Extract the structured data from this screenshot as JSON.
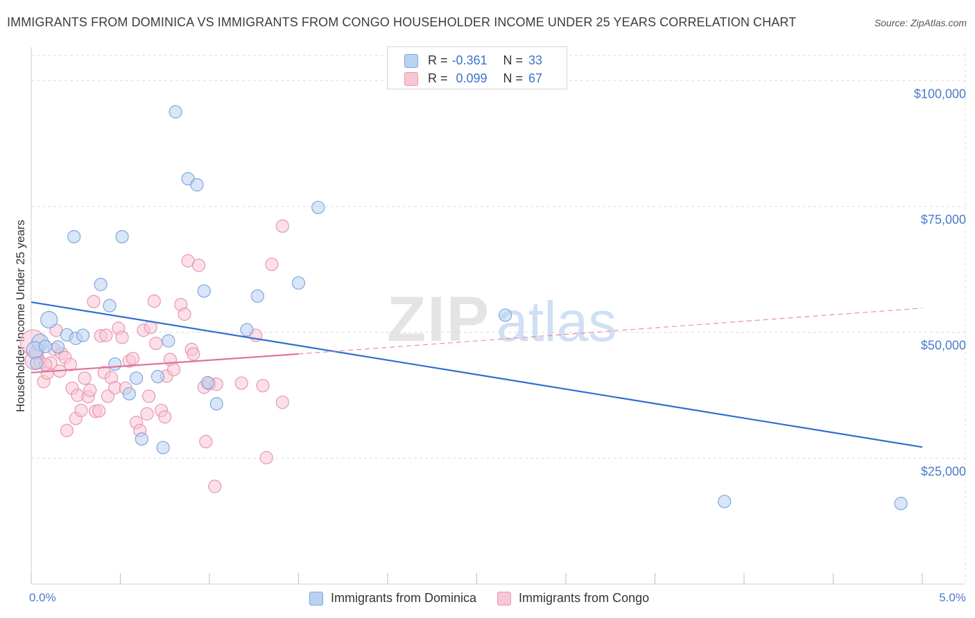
{
  "title": "IMMIGRANTS FROM DOMINICA VS IMMIGRANTS FROM CONGO HOUSEHOLDER INCOME UNDER 25 YEARS CORRELATION CHART",
  "source": "Source: ZipAtlas.com",
  "watermark": {
    "zip": "ZIP",
    "atlas": "atlas"
  },
  "legend_top": [
    {
      "r_label": "R =",
      "r_value": "-0.361",
      "n_label": "N =",
      "n_value": "33"
    },
    {
      "r_label": "R =",
      "r_value": "0.099",
      "n_label": "N =",
      "n_value": "67"
    }
  ],
  "colors": {
    "dominica_fill": "#b9d1f2",
    "dominica_stroke": "#7ea6dd",
    "dominica_line": "#2f6fcf",
    "congo_fill": "#f8c6d6",
    "congo_stroke": "#e896b1",
    "congo_line": "#e0709a",
    "axis_text": "#4a7cc9",
    "grid": "#dcdcdc"
  },
  "chart_data": {
    "type": "scatter",
    "title": "IMMIGRANTS FROM DOMINICA VS IMMIGRANTS FROM CONGO HOUSEHOLDER INCOME UNDER 25 YEARS CORRELATION CHART",
    "xlabel": "",
    "ylabel": "Householder Income Under 25 years",
    "xlim": [
      0,
      5.0
    ],
    "ylim": [
      0,
      105000
    ],
    "x_tick_labels": [
      "0.0%",
      "5.0%"
    ],
    "y_ticks": [
      {
        "value": 25000,
        "label": "$25,000"
      },
      {
        "value": 50000,
        "label": "$50,000"
      },
      {
        "value": 75000,
        "label": "$75,000"
      },
      {
        "value": 100000,
        "label": "$100,000"
      }
    ],
    "series": [
      {
        "name": "Immigrants from Dominica",
        "r": -0.361,
        "n": 33,
        "trend": {
          "x": [
            0.0,
            5.0
          ],
          "y": [
            56000,
            27200
          ]
        },
        "points": [
          [
            0.05,
            48000,
            12
          ],
          [
            0.1,
            52500,
            12
          ],
          [
            0.02,
            46500,
            12
          ],
          [
            0.2,
            49500,
            9
          ],
          [
            0.08,
            47200,
            9
          ],
          [
            0.25,
            48800,
            9
          ],
          [
            0.29,
            49400,
            9
          ],
          [
            0.24,
            69000,
            9
          ],
          [
            0.39,
            59500,
            9
          ],
          [
            0.44,
            55300,
            9
          ],
          [
            0.51,
            69000,
            9
          ],
          [
            0.47,
            43700,
            9
          ],
          [
            0.55,
            37800,
            9
          ],
          [
            0.59,
            40900,
            9
          ],
          [
            0.62,
            28800,
            9
          ],
          [
            0.71,
            41200,
            9
          ],
          [
            0.74,
            27100,
            9
          ],
          [
            0.77,
            48300,
            9
          ],
          [
            0.81,
            93800,
            9
          ],
          [
            0.88,
            80500,
            9
          ],
          [
            0.93,
            79300,
            9
          ],
          [
            0.97,
            58200,
            9
          ],
          [
            0.99,
            40000,
            9
          ],
          [
            1.04,
            35800,
            9
          ],
          [
            1.21,
            50500,
            9
          ],
          [
            1.27,
            57200,
            9
          ],
          [
            1.5,
            59800,
            9
          ],
          [
            1.61,
            74800,
            9
          ],
          [
            2.66,
            53400,
            9
          ],
          [
            3.89,
            16400,
            9
          ],
          [
            4.88,
            16000,
            9
          ],
          [
            0.03,
            43900,
            9
          ],
          [
            0.15,
            47100,
            9
          ]
        ]
      },
      {
        "name": "Immigrants from Congo",
        "r": 0.099,
        "n": 67,
        "trend": {
          "x": [
            0.0,
            1.5
          ],
          "y": [
            42000,
            45700
          ]
        },
        "trend_dashed": {
          "x": [
            1.5,
            5.0
          ],
          "y": [
            45700,
            54800
          ]
        },
        "points": [
          [
            0.01,
            48000,
            18
          ],
          [
            0.02,
            44500,
            14
          ],
          [
            0.03,
            46000,
            10
          ],
          [
            0.05,
            44000,
            9
          ],
          [
            0.07,
            40200,
            9
          ],
          [
            0.09,
            41900,
            9
          ],
          [
            0.11,
            43900,
            9
          ],
          [
            0.13,
            46600,
            9
          ],
          [
            0.14,
            50400,
            9
          ],
          [
            0.16,
            42300,
            9
          ],
          [
            0.17,
            45800,
            9
          ],
          [
            0.19,
            45000,
            9
          ],
          [
            0.2,
            30500,
            9
          ],
          [
            0.22,
            43600,
            9
          ],
          [
            0.23,
            38900,
            9
          ],
          [
            0.25,
            32900,
            9
          ],
          [
            0.26,
            37500,
            9
          ],
          [
            0.28,
            34500,
            9
          ],
          [
            0.3,
            40900,
            9
          ],
          [
            0.32,
            37200,
            9
          ],
          [
            0.33,
            38500,
            9
          ],
          [
            0.35,
            56100,
            9
          ],
          [
            0.36,
            34300,
            9
          ],
          [
            0.38,
            34400,
            9
          ],
          [
            0.39,
            49300,
            9
          ],
          [
            0.41,
            42000,
            9
          ],
          [
            0.43,
            37300,
            9
          ],
          [
            0.45,
            41000,
            9
          ],
          [
            0.47,
            39000,
            9
          ],
          [
            0.49,
            50800,
            9
          ],
          [
            0.51,
            49000,
            9
          ],
          [
            0.53,
            38900,
            9
          ],
          [
            0.55,
            44300,
            9
          ],
          [
            0.57,
            44800,
            9
          ],
          [
            0.59,
            32100,
            9
          ],
          [
            0.61,
            30500,
            9
          ],
          [
            0.63,
            50400,
            9
          ],
          [
            0.65,
            33800,
            9
          ],
          [
            0.66,
            37300,
            9
          ],
          [
            0.67,
            51000,
            9
          ],
          [
            0.69,
            56200,
            9
          ],
          [
            0.7,
            47800,
            9
          ],
          [
            0.73,
            34500,
            9
          ],
          [
            0.75,
            33200,
            9
          ],
          [
            0.76,
            41300,
            9
          ],
          [
            0.78,
            44600,
            9
          ],
          [
            0.8,
            42600,
            9
          ],
          [
            0.84,
            55500,
            9
          ],
          [
            0.86,
            53600,
            9
          ],
          [
            0.88,
            64200,
            9
          ],
          [
            0.9,
            46600,
            9
          ],
          [
            0.91,
            45700,
            9
          ],
          [
            0.94,
            63300,
            9
          ],
          [
            0.97,
            39100,
            9
          ],
          [
            0.98,
            28300,
            9
          ],
          [
            1.0,
            39800,
            9
          ],
          [
            1.04,
            39700,
            9
          ],
          [
            1.03,
            19400,
            9
          ],
          [
            1.18,
            39900,
            9
          ],
          [
            1.26,
            49400,
            9
          ],
          [
            1.3,
            39400,
            9
          ],
          [
            1.32,
            25100,
            9
          ],
          [
            1.35,
            63500,
            9
          ],
          [
            1.41,
            36100,
            9
          ],
          [
            1.41,
            71100,
            9
          ],
          [
            0.42,
            49400,
            9
          ],
          [
            0.08,
            43600,
            9
          ]
        ]
      }
    ],
    "legend": [
      "Immigrants from Dominica",
      "Immigrants from Congo"
    ]
  }
}
